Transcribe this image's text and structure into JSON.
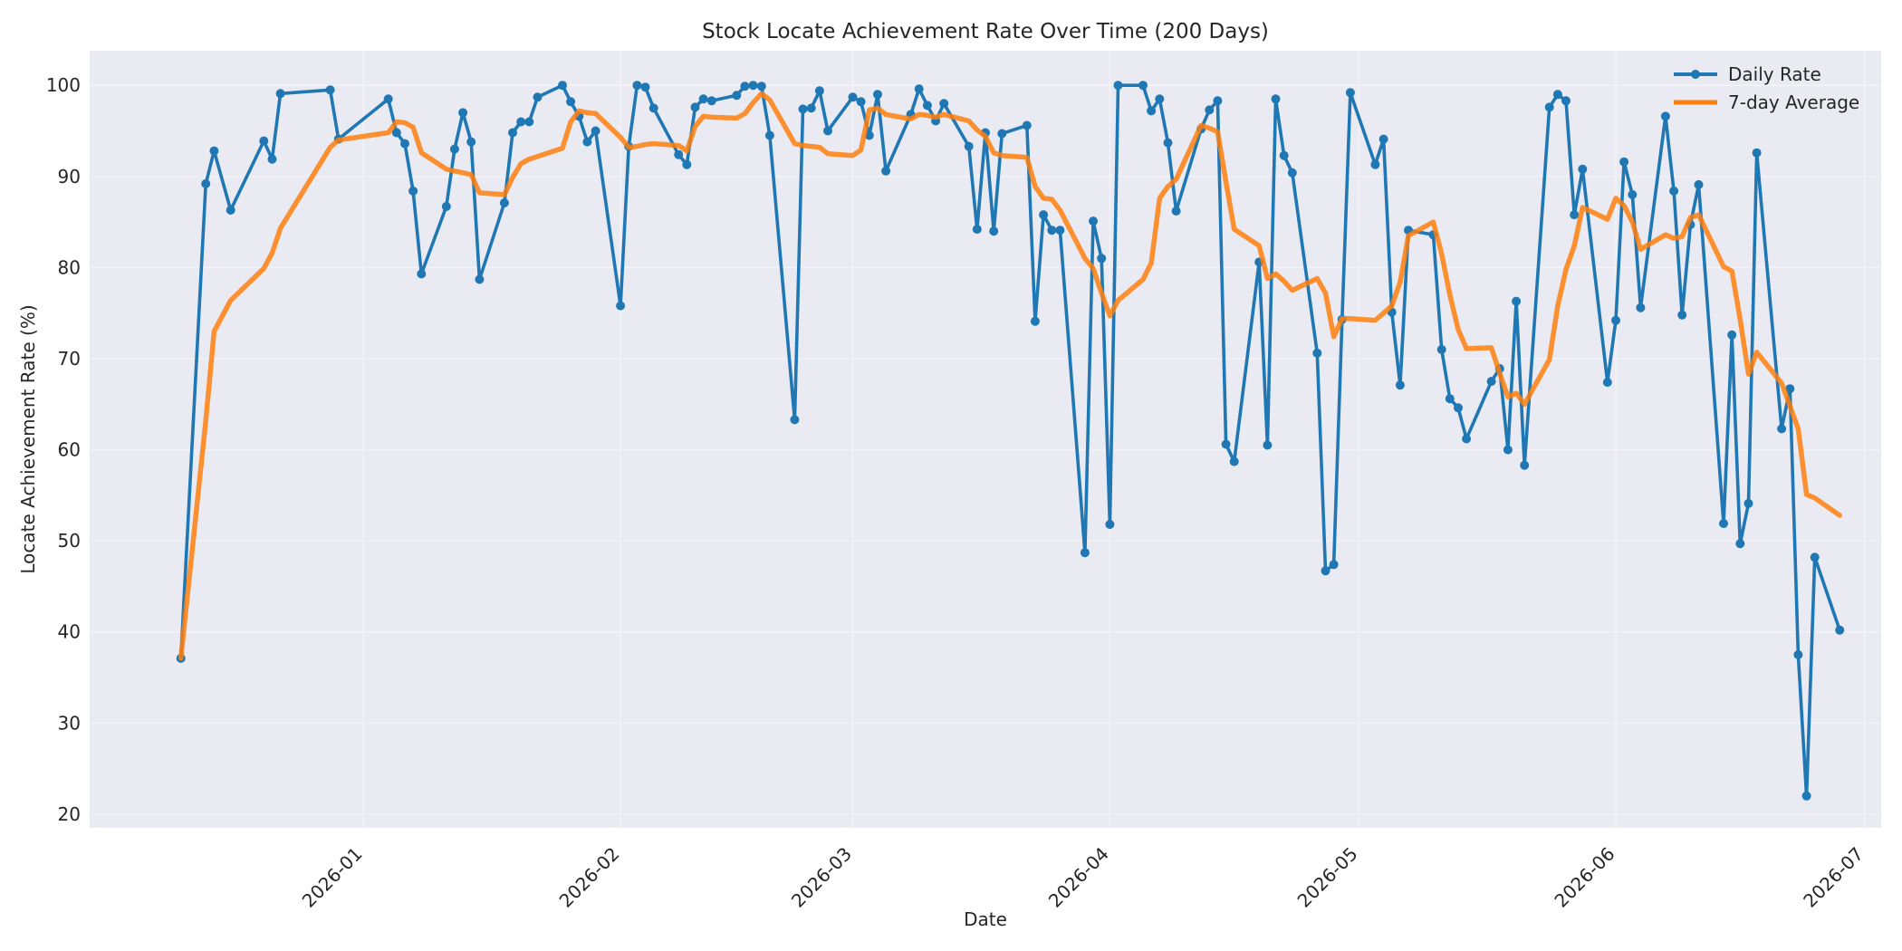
{
  "chart_data": {
    "type": "line",
    "title": "Stock Locate Achievement Rate Over Time (200 Days)",
    "xlabel": "Date",
    "ylabel": "Locate Achievement Rate (%)",
    "x_ticks": [
      "2026-01",
      "2026-02",
      "2026-03",
      "2026-04",
      "2026-05",
      "2026-06",
      "2026-07"
    ],
    "y_ticks": [
      20,
      30,
      40,
      50,
      60,
      70,
      80,
      90,
      100
    ],
    "xlim": [
      "2025-11-29",
      "2026-07-03"
    ],
    "ylim": [
      18.5,
      103.8
    ],
    "grid": true,
    "legend_position": "upper right",
    "colors": {
      "daily": "#1f77b4",
      "average": "#ff7f0e",
      "background": "#eaeaf2"
    },
    "series": [
      {
        "name": "Daily Rate",
        "marker": "circle",
        "points": [
          [
            "2025-12-10",
            37.1
          ],
          [
            "2025-12-13",
            89.2
          ],
          [
            "2025-12-14",
            92.8
          ],
          [
            "2025-12-16",
            86.3
          ],
          [
            "2025-12-20",
            93.9
          ],
          [
            "2025-12-21",
            91.9
          ],
          [
            "2025-12-22",
            99.1
          ],
          [
            "2025-12-28",
            99.5
          ],
          [
            "2025-12-29",
            94.1
          ],
          [
            "2026-01-04",
            98.5
          ],
          [
            "2026-01-05",
            94.8
          ],
          [
            "2026-01-06",
            93.6
          ],
          [
            "2026-01-07",
            88.4
          ],
          [
            "2026-01-08",
            79.3
          ],
          [
            "2026-01-11",
            86.7
          ],
          [
            "2026-01-12",
            93.0
          ],
          [
            "2026-01-13",
            97.0
          ],
          [
            "2026-01-14",
            93.8
          ],
          [
            "2026-01-15",
            78.7
          ],
          [
            "2026-01-18",
            87.1
          ],
          [
            "2026-01-19",
            94.8
          ],
          [
            "2026-01-20",
            96.0
          ],
          [
            "2026-01-21",
            96.0
          ],
          [
            "2026-01-22",
            98.7
          ],
          [
            "2026-01-25",
            100.0
          ],
          [
            "2026-01-26",
            98.2
          ],
          [
            "2026-01-27",
            96.6
          ],
          [
            "2026-01-28",
            93.8
          ],
          [
            "2026-01-29",
            95.0
          ],
          [
            "2026-02-01",
            75.8
          ],
          [
            "2026-02-02",
            93.3
          ],
          [
            "2026-02-03",
            100.0
          ],
          [
            "2026-02-04",
            99.8
          ],
          [
            "2026-02-05",
            97.5
          ],
          [
            "2026-02-08",
            92.4
          ],
          [
            "2026-02-09",
            91.3
          ],
          [
            "2026-02-10",
            97.6
          ],
          [
            "2026-02-11",
            98.5
          ],
          [
            "2026-02-12",
            98.3
          ],
          [
            "2026-02-15",
            98.9
          ],
          [
            "2026-02-16",
            99.9
          ],
          [
            "2026-02-17",
            100.0
          ],
          [
            "2026-02-18",
            99.9
          ],
          [
            "2026-02-19",
            94.5
          ],
          [
            "2026-02-22",
            63.3
          ],
          [
            "2026-02-23",
            97.4
          ],
          [
            "2026-02-24",
            97.5
          ],
          [
            "2026-02-25",
            99.4
          ],
          [
            "2026-02-26",
            95.0
          ],
          [
            "2026-03-01",
            98.7
          ],
          [
            "2026-03-02",
            98.2
          ],
          [
            "2026-03-03",
            94.5
          ],
          [
            "2026-03-04",
            99.0
          ],
          [
            "2026-03-05",
            90.6
          ],
          [
            "2026-03-08",
            96.8
          ],
          [
            "2026-03-09",
            99.6
          ],
          [
            "2026-03-10",
            97.8
          ],
          [
            "2026-03-11",
            96.1
          ],
          [
            "2026-03-12",
            98.0
          ],
          [
            "2026-03-15",
            93.3
          ],
          [
            "2026-03-16",
            84.2
          ],
          [
            "2026-03-17",
            94.8
          ],
          [
            "2026-03-18",
            84.0
          ],
          [
            "2026-03-19",
            94.7
          ],
          [
            "2026-03-22",
            95.6
          ],
          [
            "2026-03-23",
            74.1
          ],
          [
            "2026-03-24",
            85.8
          ],
          [
            "2026-03-25",
            84.1
          ],
          [
            "2026-03-26",
            84.1
          ],
          [
            "2026-03-29",
            48.7
          ],
          [
            "2026-03-30",
            85.1
          ],
          [
            "2026-03-31",
            81.0
          ],
          [
            "2026-04-01",
            51.8
          ],
          [
            "2026-04-02",
            100.0
          ],
          [
            "2026-04-05",
            100.0
          ],
          [
            "2026-04-06",
            97.2
          ],
          [
            "2026-04-07",
            98.5
          ],
          [
            "2026-04-08",
            93.7
          ],
          [
            "2026-04-09",
            86.2
          ],
          [
            "2026-04-12",
            95.2
          ],
          [
            "2026-04-13",
            97.3
          ],
          [
            "2026-04-14",
            98.3
          ],
          [
            "2026-04-15",
            60.6
          ],
          [
            "2026-04-16",
            58.7
          ],
          [
            "2026-04-19",
            80.6
          ],
          [
            "2026-04-20",
            60.5
          ],
          [
            "2026-04-21",
            98.5
          ],
          [
            "2026-04-22",
            92.3
          ],
          [
            "2026-04-23",
            90.4
          ],
          [
            "2026-04-26",
            70.6
          ],
          [
            "2026-04-27",
            46.7
          ],
          [
            "2026-04-28",
            47.4
          ],
          [
            "2026-04-29",
            74.3
          ],
          [
            "2026-04-30",
            99.2
          ],
          [
            "2026-05-03",
            91.3
          ],
          [
            "2026-05-04",
            94.1
          ],
          [
            "2026-05-05",
            75.1
          ],
          [
            "2026-05-06",
            67.1
          ],
          [
            "2026-05-07",
            84.1
          ],
          [
            "2026-05-10",
            83.6
          ],
          [
            "2026-05-11",
            71.0
          ],
          [
            "2026-05-12",
            65.6
          ],
          [
            "2026-05-13",
            64.6
          ],
          [
            "2026-05-14",
            61.2
          ],
          [
            "2026-05-17",
            67.5
          ],
          [
            "2026-05-18",
            68.9
          ],
          [
            "2026-05-19",
            60.0
          ],
          [
            "2026-05-20",
            76.3
          ],
          [
            "2026-05-21",
            58.3
          ],
          [
            "2026-05-24",
            97.6
          ],
          [
            "2026-05-25",
            99.0
          ],
          [
            "2026-05-26",
            98.3
          ],
          [
            "2026-05-27",
            85.8
          ],
          [
            "2026-05-28",
            90.8
          ],
          [
            "2026-05-31",
            67.4
          ],
          [
            "2026-06-01",
            74.2
          ],
          [
            "2026-06-02",
            91.6
          ],
          [
            "2026-06-03",
            88.0
          ],
          [
            "2026-06-04",
            75.6
          ],
          [
            "2026-06-07",
            96.6
          ],
          [
            "2026-06-08",
            88.4
          ],
          [
            "2026-06-09",
            74.8
          ],
          [
            "2026-06-10",
            84.7
          ],
          [
            "2026-06-11",
            89.1
          ],
          [
            "2026-06-14",
            51.9
          ],
          [
            "2026-06-15",
            72.6
          ],
          [
            "2026-06-16",
            49.7
          ],
          [
            "2026-06-17",
            54.1
          ],
          [
            "2026-06-18",
            92.6
          ],
          [
            "2026-06-21",
            62.3
          ],
          [
            "2026-06-22",
            66.7
          ],
          [
            "2026-06-23",
            37.5
          ],
          [
            "2026-06-24",
            22.0
          ],
          [
            "2026-06-25",
            48.2
          ],
          [
            "2026-06-28",
            40.2
          ]
        ]
      },
      {
        "name": "7-day Average",
        "marker": "none",
        "points": [
          [
            "2025-12-10",
            37.1
          ],
          [
            "2025-12-13",
            63.2
          ],
          [
            "2025-12-14",
            73.0
          ],
          [
            "2025-12-16",
            76.4
          ],
          [
            "2025-12-20",
            79.9
          ],
          [
            "2025-12-21",
            81.6
          ],
          [
            "2025-12-22",
            84.3
          ],
          [
            "2025-12-28",
            93.2
          ],
          [
            "2025-12-29",
            94.0
          ],
          [
            "2026-01-04",
            94.8
          ],
          [
            "2026-01-05",
            96.0
          ],
          [
            "2026-01-06",
            95.9
          ],
          [
            "2026-01-07",
            95.4
          ],
          [
            "2026-01-08",
            92.6
          ],
          [
            "2026-01-11",
            90.8
          ],
          [
            "2026-01-12",
            90.6
          ],
          [
            "2026-01-13",
            90.4
          ],
          [
            "2026-01-14",
            90.2
          ],
          [
            "2026-01-15",
            88.2
          ],
          [
            "2026-01-18",
            88.0
          ],
          [
            "2026-01-19",
            89.9
          ],
          [
            "2026-01-20",
            91.4
          ],
          [
            "2026-01-21",
            91.9
          ],
          [
            "2026-01-22",
            92.2
          ],
          [
            "2026-01-25",
            93.1
          ],
          [
            "2026-01-26",
            96.0
          ],
          [
            "2026-01-27",
            97.2
          ],
          [
            "2026-01-28",
            97.0
          ],
          [
            "2026-01-29",
            96.9
          ],
          [
            "2026-02-01",
            94.3
          ],
          [
            "2026-02-02",
            93.2
          ],
          [
            "2026-02-03",
            93.3
          ],
          [
            "2026-02-04",
            93.5
          ],
          [
            "2026-02-05",
            93.6
          ],
          [
            "2026-02-08",
            93.4
          ],
          [
            "2026-02-09",
            92.8
          ],
          [
            "2026-02-10",
            95.5
          ],
          [
            "2026-02-11",
            96.6
          ],
          [
            "2026-02-12",
            96.5
          ],
          [
            "2026-02-15",
            96.4
          ],
          [
            "2026-02-16",
            96.9
          ],
          [
            "2026-02-17",
            98.1
          ],
          [
            "2026-02-18",
            99.1
          ],
          [
            "2026-02-19",
            98.4
          ],
          [
            "2026-02-22",
            93.6
          ],
          [
            "2026-02-23",
            93.4
          ],
          [
            "2026-02-24",
            93.3
          ],
          [
            "2026-02-25",
            93.2
          ],
          [
            "2026-02-26",
            92.5
          ],
          [
            "2026-03-01",
            92.3
          ],
          [
            "2026-03-02",
            92.9
          ],
          [
            "2026-03-03",
            97.3
          ],
          [
            "2026-03-04",
            97.5
          ],
          [
            "2026-03-05",
            96.8
          ],
          [
            "2026-03-08",
            96.3
          ],
          [
            "2026-03-09",
            96.8
          ],
          [
            "2026-03-10",
            96.7
          ],
          [
            "2026-03-11",
            96.5
          ],
          [
            "2026-03-12",
            96.8
          ],
          [
            "2026-03-15",
            96.1
          ],
          [
            "2026-03-16",
            95.1
          ],
          [
            "2026-03-17",
            94.4
          ],
          [
            "2026-03-18",
            92.6
          ],
          [
            "2026-03-19",
            92.3
          ],
          [
            "2026-03-22",
            92.1
          ],
          [
            "2026-03-23",
            88.9
          ],
          [
            "2026-03-24",
            87.6
          ],
          [
            "2026-03-25",
            87.5
          ],
          [
            "2026-03-26",
            86.3
          ],
          [
            "2026-03-29",
            81.0
          ],
          [
            "2026-03-30",
            79.9
          ],
          [
            "2026-03-31",
            77.2
          ],
          [
            "2026-04-01",
            74.7
          ],
          [
            "2026-04-02",
            76.4
          ],
          [
            "2026-04-05",
            78.7
          ],
          [
            "2026-04-06",
            80.5
          ],
          [
            "2026-04-07",
            87.6
          ],
          [
            "2026-04-08",
            88.9
          ],
          [
            "2026-04-09",
            89.7
          ],
          [
            "2026-04-12",
            95.6
          ],
          [
            "2026-04-13",
            95.3
          ],
          [
            "2026-04-14",
            94.9
          ],
          [
            "2026-04-15",
            89.4
          ],
          [
            "2026-04-16",
            84.2
          ],
          [
            "2026-04-19",
            82.4
          ],
          [
            "2026-04-20",
            78.8
          ],
          [
            "2026-04-21",
            79.3
          ],
          [
            "2026-04-22",
            78.5
          ],
          [
            "2026-04-23",
            77.5
          ],
          [
            "2026-04-26",
            78.8
          ],
          [
            "2026-04-27",
            77.2
          ],
          [
            "2026-04-28",
            72.4
          ],
          [
            "2026-04-29",
            74.4
          ],
          [
            "2026-04-30",
            74.4
          ],
          [
            "2026-05-03",
            74.2
          ],
          [
            "2026-05-04",
            75.0
          ],
          [
            "2026-05-05",
            75.8
          ],
          [
            "2026-05-06",
            78.4
          ],
          [
            "2026-05-07",
            83.5
          ],
          [
            "2026-05-10",
            85.0
          ],
          [
            "2026-05-11",
            81.5
          ],
          [
            "2026-05-12",
            77.0
          ],
          [
            "2026-05-13",
            73.2
          ],
          [
            "2026-05-14",
            71.1
          ],
          [
            "2026-05-17",
            71.2
          ],
          [
            "2026-05-18",
            68.4
          ],
          [
            "2026-05-19",
            65.8
          ],
          [
            "2026-05-20",
            66.2
          ],
          [
            "2026-05-21",
            65.0
          ],
          [
            "2026-05-24",
            69.9
          ],
          [
            "2026-05-25",
            75.8
          ],
          [
            "2026-05-26",
            79.8
          ],
          [
            "2026-05-27",
            82.4
          ],
          [
            "2026-05-28",
            86.6
          ],
          [
            "2026-05-31",
            85.3
          ],
          [
            "2026-06-01",
            87.6
          ],
          [
            "2026-06-02",
            86.8
          ],
          [
            "2026-06-03",
            85.0
          ],
          [
            "2026-06-04",
            82.0
          ],
          [
            "2026-06-07",
            83.6
          ],
          [
            "2026-06-08",
            83.2
          ],
          [
            "2026-06-09",
            83.4
          ],
          [
            "2026-06-10",
            85.5
          ],
          [
            "2026-06-11",
            85.8
          ],
          [
            "2026-06-14",
            80.1
          ],
          [
            "2026-06-15",
            79.6
          ],
          [
            "2026-06-16",
            74.3
          ],
          [
            "2026-06-17",
            68.3
          ],
          [
            "2026-06-18",
            70.7
          ],
          [
            "2026-06-21",
            67.3
          ],
          [
            "2026-06-22",
            64.8
          ],
          [
            "2026-06-23",
            62.3
          ],
          [
            "2026-06-24",
            55.1
          ],
          [
            "2026-06-25",
            54.7
          ],
          [
            "2026-06-28",
            52.8
          ]
        ]
      }
    ]
  }
}
